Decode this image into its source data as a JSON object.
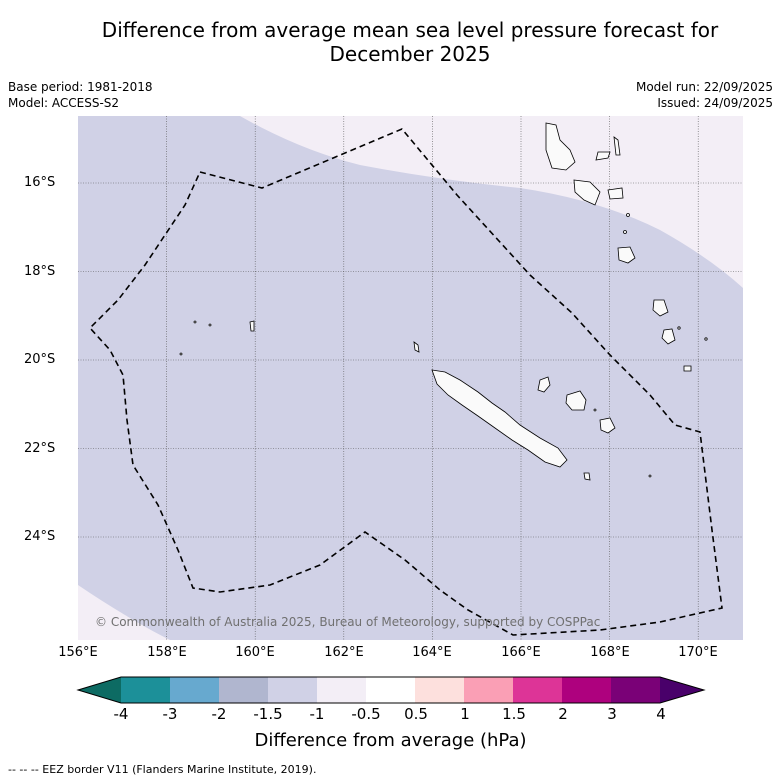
{
  "title_line1": "Difference from average mean sea level pressure forecast for",
  "title_line2": "December 2025",
  "meta_left": {
    "base_period": "Base period: 1981-2018",
    "model": "Model: ACCESS-S2"
  },
  "meta_right": {
    "model_run": "Model run: 22/09/2025",
    "issued": "Issued: 24/09/2025"
  },
  "copyright": "© Commonwealth of Australia 2025, Bureau of Meteorology, supported by COSPPac",
  "axes": {
    "lat_ticks": [
      "16°S",
      "18°S",
      "20°S",
      "22°S",
      "24°S"
    ],
    "lon_ticks": [
      "156°E",
      "158°E",
      "160°E",
      "162°E",
      "164°E",
      "166°E",
      "168°E",
      "170°E"
    ]
  },
  "colorbar": {
    "title": "Difference from average (hPa)",
    "tick_labels": [
      "-4",
      "-3",
      "-2",
      "-1.5",
      "-1",
      "-0.5",
      "0.5",
      "1",
      "1.5",
      "2",
      "3",
      "4"
    ],
    "colors": [
      "#0d6b63",
      "#1c9099",
      "#67a9cf",
      "#b0b6cf",
      "#d0d1e6",
      "#f3eef6",
      "#ffffff",
      "#fde0dd",
      "#fa9fb5",
      "#dd3497",
      "#ae017e",
      "#7a0177",
      "#49006a"
    ]
  },
  "legend_note": "--  --  -- EEZ border V11 (Flanders Marine Institute, 2019)."
}
